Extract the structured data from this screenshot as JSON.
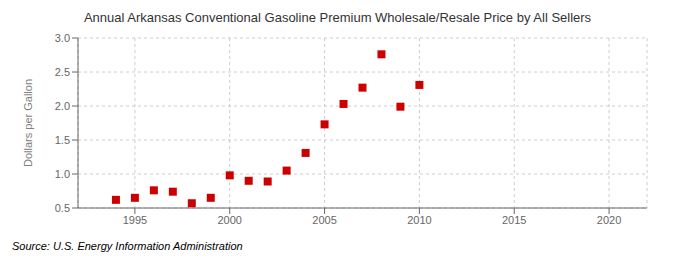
{
  "chart_data": {
    "type": "scatter",
    "title": "Annual Arkansas Conventional Gasoline Premium Wholesale/Resale Price by All Sellers",
    "ylabel": "Dollars per Gallon",
    "source": "Source: U.S. Energy Information Administration",
    "x": [
      1994,
      1995,
      1996,
      1997,
      1998,
      1999,
      2000,
      2001,
      2002,
      2003,
      2004,
      2005,
      2006,
      2007,
      2008,
      2009,
      2010
    ],
    "values": [
      0.62,
      0.65,
      0.76,
      0.74,
      0.57,
      0.65,
      0.98,
      0.9,
      0.89,
      1.05,
      1.31,
      1.73,
      2.03,
      2.27,
      2.76,
      1.99,
      2.31
    ],
    "color": "#cc0000",
    "marker": "square",
    "xlim": [
      1992,
      2022
    ],
    "ylim": [
      0.5,
      3.0
    ],
    "xticks": [
      1995,
      2000,
      2005,
      2010,
      2015,
      2020
    ],
    "yticks": [
      0.5,
      {
        "value": 1.0,
        "label": "1.0"
      },
      1.5,
      {
        "value": 2.0,
        "label": "2.0"
      },
      2.5,
      {
        "value": 3.0,
        "label": "3.0"
      }
    ],
    "grid": true
  }
}
